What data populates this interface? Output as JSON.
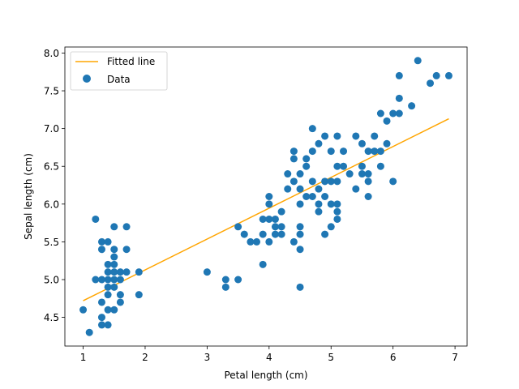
{
  "chart_data": {
    "type": "scatter",
    "title": "",
    "xlabel": "Petal length (cm)",
    "ylabel": "Sepal length (cm)",
    "xlim": [
      0.705,
      7.195
    ],
    "ylim": [
      4.12,
      8.08
    ],
    "xticks": [
      1,
      2,
      3,
      4,
      5,
      6,
      7
    ],
    "yticks": [
      4.5,
      5.0,
      5.5,
      6.0,
      6.5,
      7.0,
      7.5,
      8.0
    ],
    "xtick_labels": [
      "1",
      "2",
      "3",
      "4",
      "5",
      "6",
      "7"
    ],
    "ytick_labels": [
      "4.5",
      "5.0",
      "5.5",
      "6.0",
      "6.5",
      "7.0",
      "7.5",
      "8.0"
    ],
    "grid": false,
    "legend": {
      "location": "top-left",
      "entries": [
        {
          "label": "Fitted line",
          "kind": "line",
          "color": "#ffa500"
        },
        {
          "label": "Data",
          "kind": "marker",
          "color": "#1f77b4"
        }
      ]
    },
    "series": [
      {
        "name": "Data",
        "type": "scatter",
        "color": "#1f77b4",
        "points": [
          [
            1.0,
            4.6
          ],
          [
            1.1,
            4.3
          ],
          [
            1.2,
            5.8
          ],
          [
            1.2,
            5.0
          ],
          [
            1.3,
            5.5
          ],
          [
            1.3,
            5.4
          ],
          [
            1.3,
            5.0
          ],
          [
            1.3,
            4.7
          ],
          [
            1.3,
            4.5
          ],
          [
            1.3,
            4.4
          ],
          [
            1.4,
            5.5
          ],
          [
            1.4,
            5.2
          ],
          [
            1.4,
            5.1
          ],
          [
            1.4,
            5.0
          ],
          [
            1.4,
            4.9
          ],
          [
            1.4,
            4.8
          ],
          [
            1.4,
            4.6
          ],
          [
            1.4,
            4.4
          ],
          [
            1.5,
            5.7
          ],
          [
            1.5,
            5.4
          ],
          [
            1.5,
            5.3
          ],
          [
            1.5,
            5.2
          ],
          [
            1.5,
            5.1
          ],
          [
            1.5,
            5.0
          ],
          [
            1.5,
            4.9
          ],
          [
            1.5,
            4.6
          ],
          [
            1.6,
            5.1
          ],
          [
            1.6,
            5.0
          ],
          [
            1.6,
            4.8
          ],
          [
            1.6,
            4.7
          ],
          [
            1.7,
            5.7
          ],
          [
            1.7,
            5.4
          ],
          [
            1.7,
            5.1
          ],
          [
            1.9,
            5.1
          ],
          [
            1.9,
            4.8
          ],
          [
            3.0,
            5.1
          ],
          [
            3.3,
            5.0
          ],
          [
            3.3,
            4.9
          ],
          [
            3.5,
            5.7
          ],
          [
            3.5,
            5.0
          ],
          [
            3.6,
            5.6
          ],
          [
            3.7,
            5.5
          ],
          [
            3.8,
            5.5
          ],
          [
            3.9,
            5.8
          ],
          [
            3.9,
            5.6
          ],
          [
            3.9,
            5.2
          ],
          [
            4.0,
            6.1
          ],
          [
            4.0,
            6.0
          ],
          [
            4.0,
            5.8
          ],
          [
            4.0,
            5.5
          ],
          [
            4.1,
            5.8
          ],
          [
            4.1,
            5.7
          ],
          [
            4.1,
            5.6
          ],
          [
            4.2,
            5.9
          ],
          [
            4.2,
            5.7
          ],
          [
            4.2,
            5.6
          ],
          [
            4.3,
            6.4
          ],
          [
            4.3,
            6.2
          ],
          [
            4.4,
            6.7
          ],
          [
            4.4,
            6.6
          ],
          [
            4.4,
            6.3
          ],
          [
            4.4,
            5.5
          ],
          [
            4.5,
            6.4
          ],
          [
            4.5,
            6.2
          ],
          [
            4.5,
            6.0
          ],
          [
            4.5,
            5.7
          ],
          [
            4.5,
            5.6
          ],
          [
            4.5,
            5.4
          ],
          [
            4.5,
            4.9
          ],
          [
            4.6,
            6.6
          ],
          [
            4.6,
            6.5
          ],
          [
            4.6,
            6.1
          ],
          [
            4.7,
            7.0
          ],
          [
            4.7,
            6.7
          ],
          [
            4.7,
            6.3
          ],
          [
            4.7,
            6.1
          ],
          [
            4.8,
            6.8
          ],
          [
            4.8,
            6.2
          ],
          [
            4.8,
            6.0
          ],
          [
            4.8,
            5.9
          ],
          [
            4.9,
            6.9
          ],
          [
            4.9,
            6.3
          ],
          [
            4.9,
            6.1
          ],
          [
            4.9,
            5.6
          ],
          [
            5.0,
            6.7
          ],
          [
            5.0,
            6.3
          ],
          [
            5.0,
            6.0
          ],
          [
            5.0,
            5.7
          ],
          [
            5.1,
            6.9
          ],
          [
            5.1,
            6.5
          ],
          [
            5.1,
            6.3
          ],
          [
            5.1,
            6.0
          ],
          [
            5.1,
            5.9
          ],
          [
            5.1,
            5.8
          ],
          [
            5.2,
            6.7
          ],
          [
            5.2,
            6.5
          ],
          [
            5.3,
            6.4
          ],
          [
            5.4,
            6.9
          ],
          [
            5.4,
            6.2
          ],
          [
            5.5,
            6.8
          ],
          [
            5.5,
            6.5
          ],
          [
            5.5,
            6.4
          ],
          [
            5.6,
            6.7
          ],
          [
            5.6,
            6.4
          ],
          [
            5.6,
            6.3
          ],
          [
            5.6,
            6.1
          ],
          [
            5.7,
            6.9
          ],
          [
            5.7,
            6.7
          ],
          [
            5.8,
            7.2
          ],
          [
            5.8,
            6.7
          ],
          [
            5.8,
            6.5
          ],
          [
            5.9,
            7.1
          ],
          [
            5.9,
            6.8
          ],
          [
            6.0,
            7.2
          ],
          [
            6.0,
            6.3
          ],
          [
            6.1,
            7.7
          ],
          [
            6.1,
            7.4
          ],
          [
            6.1,
            7.2
          ],
          [
            6.3,
            7.3
          ],
          [
            6.4,
            7.9
          ],
          [
            6.6,
            7.6
          ],
          [
            6.7,
            7.7
          ],
          [
            6.9,
            7.7
          ]
        ]
      },
      {
        "name": "Fitted line",
        "type": "line",
        "color": "#ffa500",
        "points": [
          [
            1.0,
            4.72
          ],
          [
            6.9,
            7.13
          ]
        ]
      }
    ]
  }
}
